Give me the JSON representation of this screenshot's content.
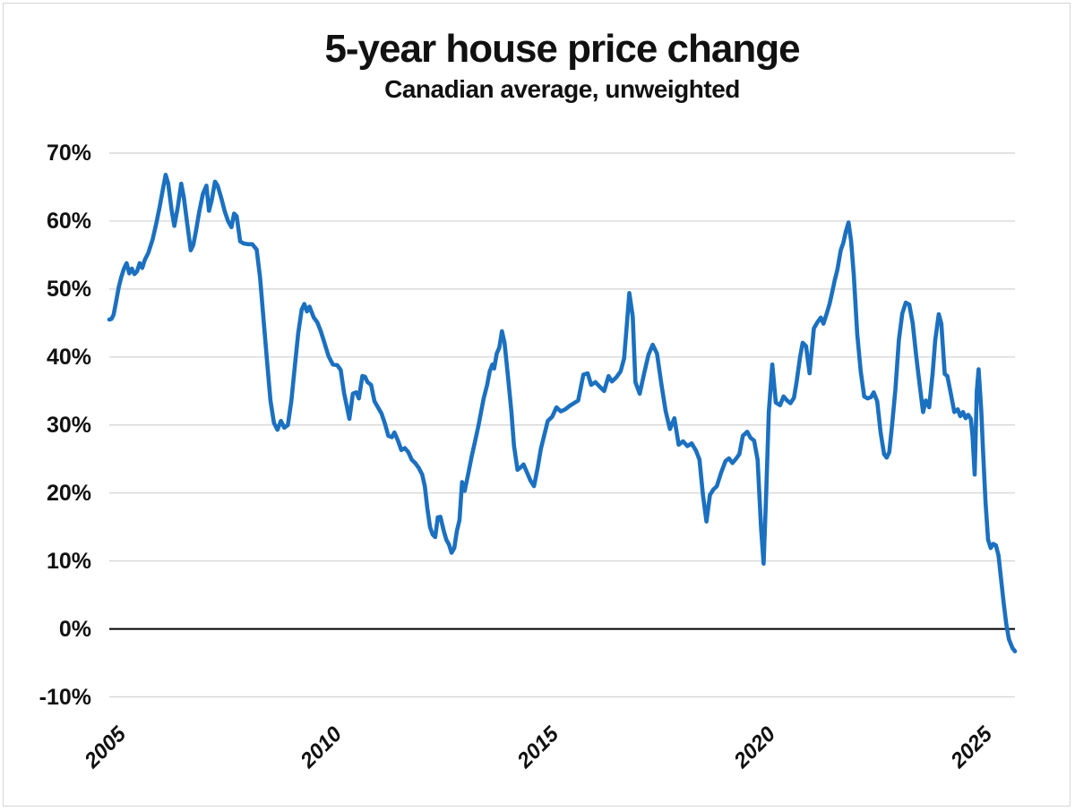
{
  "header": {
    "title": "5-year house price change",
    "subtitle": "Canadian average, unweighted"
  },
  "chart_data": {
    "type": "line",
    "title": "5-year house price change",
    "subtitle": "Canadian average, unweighted",
    "xlabel": "",
    "ylabel": "",
    "legend": "none",
    "grid": "horizontal-only",
    "xlim": [
      2005.0,
      2025.9
    ],
    "ylim": [
      -10,
      70
    ],
    "x_ticks": [
      {
        "label": "2005",
        "year": 2005
      },
      {
        "label": "2010",
        "year": 2010
      },
      {
        "label": "2015",
        "year": 2015
      },
      {
        "label": "2020",
        "year": 2020
      },
      {
        "label": "2025",
        "year": 2025
      }
    ],
    "y_ticks": [
      {
        "label": "70%",
        "value": 70
      },
      {
        "label": "60%",
        "value": 60
      },
      {
        "label": "50%",
        "value": 50
      },
      {
        "label": "40%",
        "value": 40
      },
      {
        "label": "30%",
        "value": 30
      },
      {
        "label": "20%",
        "value": 20
      },
      {
        "label": "10%",
        "value": 10
      },
      {
        "label": "0%",
        "value": 0
      },
      {
        "label": "-10%",
        "value": -10
      }
    ],
    "colors": {
      "line": "#1b70c0",
      "gridline": "#d9d9d9",
      "zero_line": "#000000",
      "text": "#111111"
    },
    "series": [
      {
        "name": "Canadian average 5-year house price change (%, unweighted)",
        "points": [
          [
            2005.0,
            45.5
          ],
          [
            2005.05,
            45.6
          ],
          [
            2005.1,
            46.2
          ],
          [
            2005.16,
            48.2
          ],
          [
            2005.22,
            50.3
          ],
          [
            2005.28,
            51.8
          ],
          [
            2005.34,
            53.0
          ],
          [
            2005.4,
            53.8
          ],
          [
            2005.46,
            52.3
          ],
          [
            2005.52,
            53.0
          ],
          [
            2005.58,
            52.2
          ],
          [
            2005.64,
            52.6
          ],
          [
            2005.7,
            53.8
          ],
          [
            2005.76,
            53.1
          ],
          [
            2005.82,
            54.3
          ],
          [
            2005.9,
            55.3
          ],
          [
            2006.0,
            57.3
          ],
          [
            2006.08,
            59.5
          ],
          [
            2006.16,
            62.0
          ],
          [
            2006.24,
            64.8
          ],
          [
            2006.3,
            66.8
          ],
          [
            2006.36,
            65.5
          ],
          [
            2006.44,
            61.5
          ],
          [
            2006.5,
            59.3
          ],
          [
            2006.58,
            62.0
          ],
          [
            2006.66,
            65.5
          ],
          [
            2006.72,
            63.5
          ],
          [
            2006.8,
            59.5
          ],
          [
            2006.88,
            55.7
          ],
          [
            2006.94,
            56.5
          ],
          [
            2007.0,
            58.5
          ],
          [
            2007.08,
            61.5
          ],
          [
            2007.16,
            64.0
          ],
          [
            2007.24,
            65.2
          ],
          [
            2007.3,
            61.5
          ],
          [
            2007.36,
            63.0
          ],
          [
            2007.44,
            65.8
          ],
          [
            2007.5,
            65.2
          ],
          [
            2007.58,
            63.5
          ],
          [
            2007.66,
            61.5
          ],
          [
            2007.74,
            60.0
          ],
          [
            2007.82,
            59.1
          ],
          [
            2007.88,
            61.1
          ],
          [
            2007.94,
            60.7
          ],
          [
            2008.02,
            57.0
          ],
          [
            2008.1,
            56.7
          ],
          [
            2008.2,
            56.6
          ],
          [
            2008.3,
            56.6
          ],
          [
            2008.4,
            55.8
          ],
          [
            2008.48,
            51.7
          ],
          [
            2008.56,
            45.5
          ],
          [
            2008.64,
            39.4
          ],
          [
            2008.72,
            33.6
          ],
          [
            2008.8,
            30.3
          ],
          [
            2008.88,
            29.3
          ],
          [
            2008.96,
            30.6
          ],
          [
            2009.04,
            29.6
          ],
          [
            2009.12,
            30.0
          ],
          [
            2009.2,
            33.5
          ],
          [
            2009.28,
            38.5
          ],
          [
            2009.36,
            43.5
          ],
          [
            2009.44,
            47.0
          ],
          [
            2009.5,
            47.8
          ],
          [
            2009.56,
            46.7
          ],
          [
            2009.62,
            47.4
          ],
          [
            2009.72,
            45.8
          ],
          [
            2009.8,
            45.1
          ],
          [
            2009.88,
            43.8
          ],
          [
            2009.96,
            42.2
          ],
          [
            2010.06,
            40.1
          ],
          [
            2010.16,
            38.9
          ],
          [
            2010.26,
            38.8
          ],
          [
            2010.34,
            38.1
          ],
          [
            2010.42,
            34.6
          ],
          [
            2010.48,
            32.8
          ],
          [
            2010.54,
            30.9
          ],
          [
            2010.62,
            34.6
          ],
          [
            2010.7,
            34.8
          ],
          [
            2010.76,
            33.9
          ],
          [
            2010.84,
            37.2
          ],
          [
            2010.9,
            37.1
          ],
          [
            2010.96,
            36.3
          ],
          [
            2011.04,
            35.9
          ],
          [
            2011.12,
            33.5
          ],
          [
            2011.2,
            32.6
          ],
          [
            2011.28,
            31.7
          ],
          [
            2011.36,
            30.2
          ],
          [
            2011.44,
            28.4
          ],
          [
            2011.52,
            28.2
          ],
          [
            2011.58,
            28.9
          ],
          [
            2011.66,
            27.7
          ],
          [
            2011.74,
            26.3
          ],
          [
            2011.82,
            26.6
          ],
          [
            2011.9,
            26.0
          ],
          [
            2011.98,
            24.9
          ],
          [
            2012.06,
            24.4
          ],
          [
            2012.14,
            23.7
          ],
          [
            2012.22,
            22.7
          ],
          [
            2012.28,
            21.0
          ],
          [
            2012.34,
            17.7
          ],
          [
            2012.4,
            15.0
          ],
          [
            2012.46,
            13.9
          ],
          [
            2012.52,
            13.5
          ],
          [
            2012.58,
            16.4
          ],
          [
            2012.64,
            16.5
          ],
          [
            2012.72,
            14.4
          ],
          [
            2012.78,
            13.1
          ],
          [
            2012.84,
            12.4
          ],
          [
            2012.9,
            11.2
          ],
          [
            2012.96,
            11.9
          ],
          [
            2013.02,
            14.4
          ],
          [
            2013.08,
            16.0
          ],
          [
            2013.14,
            21.6
          ],
          [
            2013.2,
            20.3
          ],
          [
            2013.28,
            22.7
          ],
          [
            2013.36,
            25.3
          ],
          [
            2013.44,
            27.6
          ],
          [
            2013.52,
            29.9
          ],
          [
            2013.58,
            31.9
          ],
          [
            2013.64,
            33.9
          ],
          [
            2013.72,
            35.9
          ],
          [
            2013.78,
            37.9
          ],
          [
            2013.84,
            38.9
          ],
          [
            2013.88,
            38.3
          ],
          [
            2013.94,
            40.5
          ],
          [
            2014.0,
            41.4
          ],
          [
            2014.06,
            43.8
          ],
          [
            2014.12,
            42.1
          ],
          [
            2014.2,
            37.2
          ],
          [
            2014.28,
            31.9
          ],
          [
            2014.34,
            26.9
          ],
          [
            2014.42,
            23.4
          ],
          [
            2014.5,
            23.8
          ],
          [
            2014.56,
            24.2
          ],
          [
            2014.64,
            23.0
          ],
          [
            2014.72,
            21.8
          ],
          [
            2014.8,
            21.0
          ],
          [
            2014.88,
            23.5
          ],
          [
            2014.96,
            26.5
          ],
          [
            2015.04,
            28.6
          ],
          [
            2015.12,
            30.6
          ],
          [
            2015.22,
            31.2
          ],
          [
            2015.32,
            32.6
          ],
          [
            2015.42,
            32.0
          ],
          [
            2015.52,
            32.3
          ],
          [
            2015.62,
            32.8
          ],
          [
            2015.72,
            33.2
          ],
          [
            2015.82,
            33.6
          ],
          [
            2015.88,
            35.5
          ],
          [
            2015.94,
            37.4
          ],
          [
            2016.04,
            37.6
          ],
          [
            2016.12,
            35.9
          ],
          [
            2016.22,
            36.3
          ],
          [
            2016.32,
            35.6
          ],
          [
            2016.42,
            35.0
          ],
          [
            2016.52,
            37.2
          ],
          [
            2016.6,
            36.4
          ],
          [
            2016.7,
            37.0
          ],
          [
            2016.8,
            37.9
          ],
          [
            2016.88,
            39.8
          ],
          [
            2016.94,
            44.5
          ],
          [
            2017.0,
            49.4
          ],
          [
            2017.08,
            46.0
          ],
          [
            2017.14,
            36.3
          ],
          [
            2017.24,
            34.6
          ],
          [
            2017.34,
            37.5
          ],
          [
            2017.44,
            40.3
          ],
          [
            2017.54,
            41.8
          ],
          [
            2017.64,
            40.5
          ],
          [
            2017.74,
            36.0
          ],
          [
            2017.84,
            32.0
          ],
          [
            2017.94,
            29.4
          ],
          [
            2018.04,
            31.0
          ],
          [
            2018.14,
            27.1
          ],
          [
            2018.24,
            27.6
          ],
          [
            2018.34,
            26.9
          ],
          [
            2018.44,
            27.3
          ],
          [
            2018.54,
            26.2
          ],
          [
            2018.62,
            24.9
          ],
          [
            2018.7,
            19.7
          ],
          [
            2018.78,
            15.8
          ],
          [
            2018.86,
            19.7
          ],
          [
            2018.94,
            20.5
          ],
          [
            2019.02,
            21.0
          ],
          [
            2019.12,
            23.0
          ],
          [
            2019.22,
            24.7
          ],
          [
            2019.3,
            25.1
          ],
          [
            2019.38,
            24.4
          ],
          [
            2019.46,
            25.0
          ],
          [
            2019.54,
            25.7
          ],
          [
            2019.62,
            28.4
          ],
          [
            2019.72,
            29.0
          ],
          [
            2019.8,
            28.1
          ],
          [
            2019.88,
            27.7
          ],
          [
            2019.96,
            24.9
          ],
          [
            2020.04,
            15.0
          ],
          [
            2020.1,
            9.6
          ],
          [
            2020.16,
            20.0
          ],
          [
            2020.22,
            31.9
          ],
          [
            2020.3,
            38.9
          ],
          [
            2020.38,
            33.3
          ],
          [
            2020.48,
            32.9
          ],
          [
            2020.56,
            34.2
          ],
          [
            2020.64,
            33.6
          ],
          [
            2020.72,
            33.2
          ],
          [
            2020.8,
            34.0
          ],
          [
            2020.86,
            36.3
          ],
          [
            2020.94,
            40.0
          ],
          [
            2021.0,
            42.1
          ],
          [
            2021.08,
            41.6
          ],
          [
            2021.16,
            37.6
          ],
          [
            2021.26,
            44.2
          ],
          [
            2021.34,
            45.1
          ],
          [
            2021.42,
            45.8
          ],
          [
            2021.48,
            44.9
          ],
          [
            2021.56,
            46.5
          ],
          [
            2021.62,
            47.8
          ],
          [
            2021.68,
            49.5
          ],
          [
            2021.74,
            51.3
          ],
          [
            2021.8,
            52.8
          ],
          [
            2021.88,
            55.7
          ],
          [
            2021.94,
            56.8
          ],
          [
            2022.0,
            58.5
          ],
          [
            2022.06,
            59.8
          ],
          [
            2022.12,
            57.0
          ],
          [
            2022.18,
            52.0
          ],
          [
            2022.26,
            43.4
          ],
          [
            2022.34,
            37.9
          ],
          [
            2022.42,
            34.2
          ],
          [
            2022.5,
            33.9
          ],
          [
            2022.58,
            34.1
          ],
          [
            2022.64,
            34.8
          ],
          [
            2022.72,
            33.5
          ],
          [
            2022.8,
            28.9
          ],
          [
            2022.88,
            25.7
          ],
          [
            2022.94,
            25.2
          ],
          [
            2023.0,
            26.0
          ],
          [
            2023.06,
            29.7
          ],
          [
            2023.14,
            35.2
          ],
          [
            2023.22,
            42.5
          ],
          [
            2023.3,
            46.4
          ],
          [
            2023.38,
            48.0
          ],
          [
            2023.46,
            47.7
          ],
          [
            2023.54,
            45.0
          ],
          [
            2023.62,
            40.2
          ],
          [
            2023.7,
            35.9
          ],
          [
            2023.78,
            31.9
          ],
          [
            2023.84,
            33.6
          ],
          [
            2023.92,
            32.6
          ],
          [
            2024.0,
            37.6
          ],
          [
            2024.06,
            42.5
          ],
          [
            2024.14,
            46.3
          ],
          [
            2024.2,
            44.9
          ],
          [
            2024.28,
            37.5
          ],
          [
            2024.34,
            37.2
          ],
          [
            2024.42,
            34.6
          ],
          [
            2024.5,
            31.9
          ],
          [
            2024.58,
            32.3
          ],
          [
            2024.64,
            31.3
          ],
          [
            2024.7,
            31.9
          ],
          [
            2024.76,
            31.0
          ],
          [
            2024.82,
            31.5
          ],
          [
            2024.88,
            30.9
          ],
          [
            2024.92,
            28.4
          ],
          [
            2024.97,
            22.7
          ],
          [
            2025.02,
            35.0
          ],
          [
            2025.06,
            38.2
          ],
          [
            2025.12,
            32.3
          ],
          [
            2025.16,
            26.6
          ],
          [
            2025.22,
            18.7
          ],
          [
            2025.28,
            13.1
          ],
          [
            2025.34,
            11.9
          ],
          [
            2025.4,
            12.5
          ],
          [
            2025.46,
            12.3
          ],
          [
            2025.52,
            10.8
          ],
          [
            2025.58,
            7.3
          ],
          [
            2025.64,
            3.8
          ],
          [
            2025.7,
            0.7
          ],
          [
            2025.76,
            -1.5
          ],
          [
            2025.84,
            -2.8
          ],
          [
            2025.9,
            -3.3
          ]
        ]
      }
    ]
  }
}
